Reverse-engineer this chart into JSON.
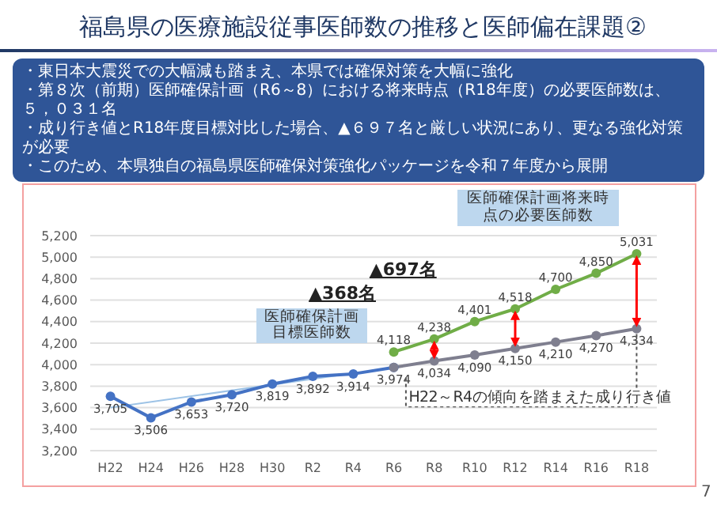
{
  "chart_data": {
    "type": "line",
    "title": "福島県の医療施設従事医師数の推移と医師偏在課題②",
    "categories": [
      "H22",
      "H24",
      "H26",
      "H28",
      "H30",
      "R2",
      "R4",
      "R6",
      "R8",
      "R10",
      "R12",
      "R14",
      "R16",
      "R18"
    ],
    "series": [
      {
        "color": "#9dc3e6",
        "marker": "none",
        "values": [
          3600,
          null,
          null,
          null,
          null,
          null,
          3920,
          null,
          null,
          null,
          null,
          null,
          null,
          null
        ]
      },
      {
        "color": "#4472c4",
        "values": [
          3705,
          3506,
          3653,
          3720,
          3819,
          3892,
          3914,
          3974,
          null,
          null,
          null,
          null,
          null,
          null
        ],
        "value_labels": [
          "3,705",
          "3,506",
          "3,653",
          "3,720",
          "3,819",
          "3,892",
          "3,914",
          "3,974",
          null,
          null,
          null,
          null,
          null,
          null
        ]
      },
      {
        "color": "#7f7f8f",
        "values": [
          null,
          null,
          null,
          null,
          null,
          null,
          null,
          3974,
          4034,
          4090,
          4150,
          4210,
          4270,
          4334
        ],
        "value_labels": [
          null,
          null,
          null,
          null,
          null,
          null,
          null,
          null,
          "4,034",
          "4,090",
          "4,150",
          "4,210",
          "4,270",
          "4,334"
        ]
      },
      {
        "color": "#70ad47",
        "values": [
          null,
          null,
          null,
          null,
          null,
          null,
          null,
          4118,
          4238,
          4401,
          4518,
          4700,
          4850,
          5031
        ],
        "value_labels": [
          null,
          null,
          null,
          null,
          null,
          null,
          null,
          "4,118",
          "4,238",
          "4,401",
          "4,518",
          "4,700",
          "4,850",
          "5,031"
        ]
      }
    ],
    "ylim": [
      3200,
      5200
    ],
    "yticks": [
      {
        "value": 3200,
        "label": "3,200"
      },
      {
        "value": 3400,
        "label": "3,400"
      },
      {
        "value": 3600,
        "label": "3,600"
      },
      {
        "value": 3800,
        "label": "3,800"
      },
      {
        "value": 4000,
        "label": "4,000"
      },
      {
        "value": 4200,
        "label": "4,200"
      },
      {
        "value": 4400,
        "label": "4,400"
      },
      {
        "value": 4600,
        "label": "4,600"
      },
      {
        "value": 4800,
        "label": "4,800"
      },
      {
        "value": 5000,
        "label": "5,000"
      },
      {
        "value": 5200,
        "label": "5,200"
      }
    ],
    "grid": "y",
    "marker": "circle",
    "annotations": [
      "・東日本大震災での大幅減も踏まえ、本県では確保対策を大幅に強化",
      "・第８次（前期）医師確保計画（R6～8）における将来時点（R18年度）の必要医師数は、５，０３１名",
      "・成り行き値とR18年度目標対比した場合、▲６９７名と厳しい状況にあり、更なる強化対策が必要",
      "・このため、本県独自の福島県医師確保対策強化パッケージを令和７年度から展開",
      {
        "text": "医師確保計画目標医師数",
        "x": "R6",
        "y": 4118
      },
      "▲368名",
      "▲697名",
      {
        "text": "医師確保計画将来時点の必要医師数",
        "x": "R18",
        "y": 5031
      },
      {
        "text": "H22～R4の傾向を踏まえた成り行き値",
        "x": "R18",
        "y": 4334
      },
      "7"
    ]
  }
}
